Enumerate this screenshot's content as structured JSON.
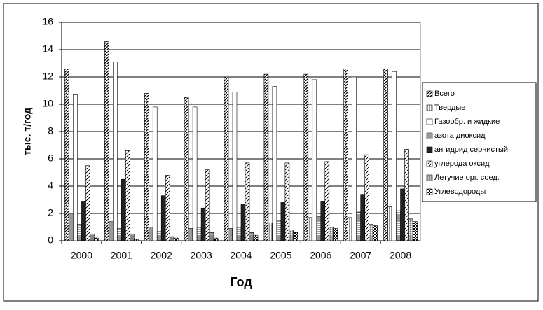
{
  "chart_data": {
    "type": "bar",
    "ylabel": "тыс. т/год",
    "xlabel": "Год",
    "categories": [
      "2000",
      "2001",
      "2002",
      "2003",
      "2004",
      "2005",
      "2006",
      "2007",
      "2008"
    ],
    "ylim": [
      0,
      16
    ],
    "yticks": [
      0,
      2,
      4,
      6,
      8,
      10,
      12,
      14,
      16
    ],
    "grid": true,
    "legend": "right",
    "series": [
      {
        "name": "Всего",
        "color": "#444444",
        "pattern": "diag",
        "values": [
          12.6,
          14.6,
          10.8,
          10.5,
          12.0,
          12.2,
          12.2,
          12.6,
          12.6
        ]
      },
      {
        "name": "Твердые",
        "color": "#666666",
        "pattern": "vert",
        "values": [
          2.0,
          1.4,
          1.0,
          0.9,
          0.9,
          1.3,
          1.7,
          1.7,
          2.5
        ]
      },
      {
        "name": "Газообр. и жидкие",
        "color": "#ffffff",
        "pattern": "none",
        "values": [
          10.7,
          13.1,
          9.8,
          9.8,
          10.9,
          11.3,
          11.8,
          12.0,
          12.4
        ]
      },
      {
        "name": "азота диоксид",
        "color": "#555555",
        "pattern": "horiz",
        "values": [
          1.2,
          0.9,
          0.8,
          1.0,
          1.0,
          1.5,
          1.8,
          2.1,
          2.2
        ]
      },
      {
        "name": "ангидрид сернистый",
        "color": "#222222",
        "pattern": "solid",
        "values": [
          2.9,
          4.5,
          3.3,
          2.4,
          2.7,
          2.8,
          2.9,
          3.4,
          3.8
        ]
      },
      {
        "name": "углерода оксид",
        "color": "#777777",
        "pattern": "diagwide",
        "values": [
          5.5,
          6.6,
          4.8,
          5.2,
          5.7,
          5.7,
          5.8,
          6.3,
          6.7
        ]
      },
      {
        "name": "Летучие орг. соед.",
        "color": "#555555",
        "pattern": "grid",
        "values": [
          0.5,
          0.5,
          0.3,
          0.6,
          0.6,
          0.8,
          1.0,
          1.2,
          1.6
        ]
      },
      {
        "name": "Углеводороды",
        "color": "#333333",
        "pattern": "check",
        "values": [
          0.2,
          0.1,
          0.2,
          0.2,
          0.4,
          0.6,
          0.9,
          1.1,
          1.4
        ]
      }
    ]
  }
}
